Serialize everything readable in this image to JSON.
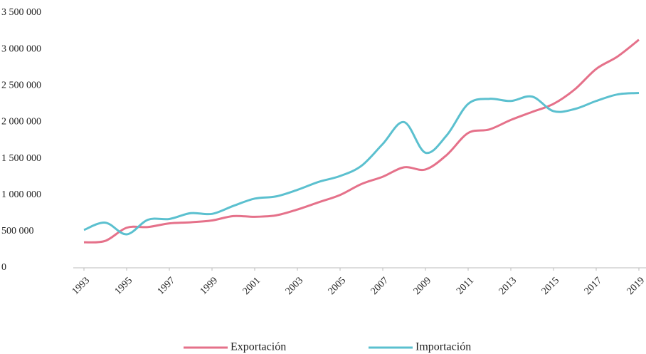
{
  "chart_data": {
    "type": "line",
    "x": [
      1993,
      1994,
      1995,
      1996,
      1997,
      1998,
      1999,
      2000,
      2001,
      2002,
      2003,
      2004,
      2005,
      2006,
      2007,
      2008,
      2009,
      2010,
      2011,
      2012,
      2013,
      2014,
      2015,
      2016,
      2017,
      2018,
      2019
    ],
    "series": [
      {
        "name": "Exportación",
        "color": "#e5718a",
        "values": [
          350000,
          370000,
          550000,
          560000,
          610000,
          625000,
          650000,
          710000,
          700000,
          720000,
          800000,
          900000,
          1000000,
          1150000,
          1250000,
          1380000,
          1350000,
          1550000,
          1850000,
          1900000,
          2030000,
          2140000,
          2250000,
          2450000,
          2730000,
          2900000,
          3130000
        ]
      },
      {
        "name": "Importación",
        "color": "#5bc0cf",
        "values": [
          520000,
          620000,
          460000,
          660000,
          670000,
          750000,
          740000,
          850000,
          950000,
          980000,
          1070000,
          1180000,
          1260000,
          1400000,
          1700000,
          2000000,
          1580000,
          1820000,
          2250000,
          2320000,
          2290000,
          2350000,
          2150000,
          2180000,
          2290000,
          2380000,
          2400000
        ]
      }
    ],
    "xlim": [
      1993,
      2019
    ],
    "xticks": [
      1993,
      1995,
      1997,
      1999,
      2001,
      2003,
      2005,
      2007,
      2009,
      2011,
      2013,
      2015,
      2017,
      2019
    ],
    "ylim": [
      0,
      3500000
    ],
    "yticks": [
      0,
      {
        "value": 500000,
        "label": "500 000"
      },
      {
        "value": 1000000,
        "label": "1 000 000"
      },
      {
        "value": 1500000,
        "label": "1 500 000"
      },
      {
        "value": 2000000,
        "label": "2 000 000"
      },
      {
        "value": 2500000,
        "label": "2 500 000"
      },
      {
        "value": 3000000,
        "label": "3 000 000"
      },
      {
        "value": 3500000,
        "label": "3 500 000"
      }
    ],
    "grid": false,
    "legend": "bottom"
  }
}
